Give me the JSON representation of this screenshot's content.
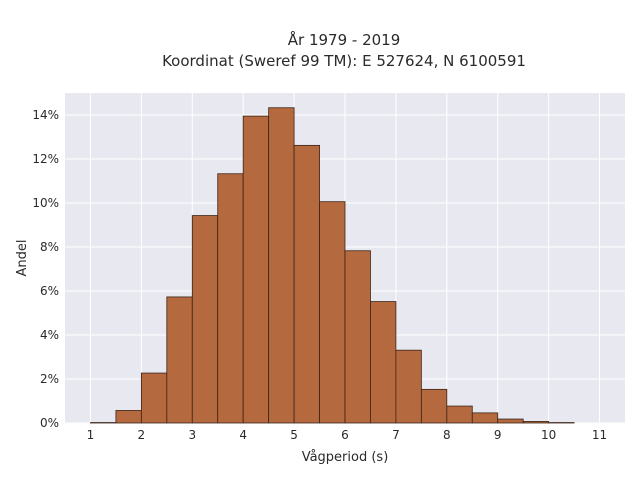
{
  "chart_data": {
    "type": "bar",
    "title_line1": "År 1979 - 2019",
    "title_line2": "Koordinat (Sweref 99 TM): E 527624, N 6100591",
    "xlabel": "Vågperiod (s)",
    "ylabel": "Andel",
    "xlim": [
      0.5,
      11.5
    ],
    "ylim": [
      0,
      15
    ],
    "x_ticks": [
      1,
      2,
      3,
      4,
      5,
      6,
      7,
      8,
      9,
      10,
      11
    ],
    "y_ticks": [
      0,
      2,
      4,
      6,
      8,
      10,
      12,
      14
    ],
    "y_tick_labels": [
      "0%",
      "2%",
      "4%",
      "6%",
      "8%",
      "10%",
      "12%",
      "14%"
    ],
    "bin_width": 0.5,
    "bins": [
      {
        "x0": 1.0,
        "x1": 1.5,
        "value": 0.02
      },
      {
        "x0": 1.5,
        "x1": 2.0,
        "value": 0.57
      },
      {
        "x0": 2.0,
        "x1": 2.5,
        "value": 2.27
      },
      {
        "x0": 2.5,
        "x1": 3.0,
        "value": 5.73
      },
      {
        "x0": 3.0,
        "x1": 3.5,
        "value": 9.43
      },
      {
        "x0": 3.5,
        "x1": 4.0,
        "value": 11.33
      },
      {
        "x0": 4.0,
        "x1": 4.5,
        "value": 13.95
      },
      {
        "x0": 4.5,
        "x1": 5.0,
        "value": 14.33
      },
      {
        "x0": 5.0,
        "x1": 5.5,
        "value": 12.62
      },
      {
        "x0": 5.5,
        "x1": 6.0,
        "value": 10.06
      },
      {
        "x0": 6.0,
        "x1": 6.5,
        "value": 7.83
      },
      {
        "x0": 6.5,
        "x1": 7.0,
        "value": 5.52
      },
      {
        "x0": 7.0,
        "x1": 7.5,
        "value": 3.31
      },
      {
        "x0": 7.5,
        "x1": 8.0,
        "value": 1.53
      },
      {
        "x0": 8.0,
        "x1": 8.5,
        "value": 0.77
      },
      {
        "x0": 8.5,
        "x1": 9.0,
        "value": 0.46
      },
      {
        "x0": 9.0,
        "x1": 9.5,
        "value": 0.18
      },
      {
        "x0": 9.5,
        "x1": 10.0,
        "value": 0.07
      },
      {
        "x0": 10.0,
        "x1": 10.5,
        "value": 0.02
      }
    ],
    "grid": true,
    "legend": "none",
    "colors": {
      "bar_fill": "#b5693e",
      "bar_stroke": "#3b2418",
      "plot_bg": "#e8e8f0",
      "grid": "#ffffff"
    }
  }
}
